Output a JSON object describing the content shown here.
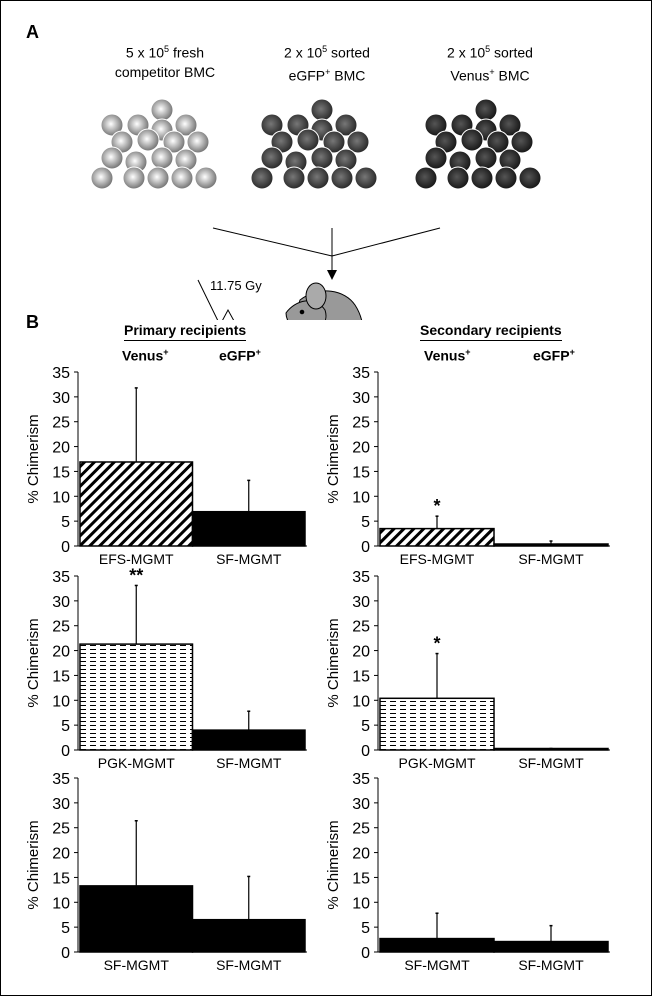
{
  "panel_a": {
    "label": "A",
    "groups": [
      {
        "line1": "5 x 10",
        "sup": "5",
        "line1_rest": " fresh",
        "line2": "competitor BMC",
        "tone": "light"
      },
      {
        "line1": "2 x 10",
        "sup": "5",
        "line1_rest": " sorted",
        "line2": "eGFP",
        "line2_sup": "+",
        "line2_rest": " BMC",
        "tone": "dark"
      },
      {
        "line1": "2 x 10",
        "sup": "5",
        "line1_rest": " sorted",
        "line2": "Venus",
        "line2_sup": "+",
        "line2_rest": " BMC",
        "tone": "darker"
      }
    ],
    "irradiation": "11.75 Gy"
  },
  "panel_b": {
    "label": "B",
    "primary_title": "Primary recipients",
    "secondary_title": "Secondary recipients",
    "col1": "Venus",
    "col1_sup": "+",
    "col2": "eGFP",
    "col2_sup": "+"
  },
  "chart_data": [
    {
      "type": "bar",
      "id": "p1",
      "ylabel": "% Chimerism",
      "ylim": [
        0,
        35
      ],
      "yticks": [
        0,
        5,
        10,
        15,
        20,
        25,
        30,
        35
      ],
      "categories": [
        "EFS-MGMT",
        "SF-MGMT"
      ],
      "values": [
        16.9,
        6.9
      ],
      "error_upper": [
        31.8,
        13.2
      ],
      "patterns": [
        "diagonal",
        "solid"
      ],
      "annotations": [
        "",
        ""
      ]
    },
    {
      "type": "bar",
      "id": "s1",
      "ylabel": "% Chimerism",
      "ylim": [
        0,
        35
      ],
      "yticks": [
        0,
        5,
        10,
        15,
        20,
        25,
        30,
        35
      ],
      "categories": [
        "EFS-MGMT",
        "SF-MGMT"
      ],
      "values": [
        3.5,
        0.4
      ],
      "error_upper": [
        6.0,
        1.0
      ],
      "patterns": [
        "diagonal",
        "solid"
      ],
      "annotations": [
        "*",
        ""
      ]
    },
    {
      "type": "bar",
      "id": "p2",
      "ylabel": "% Chimerism",
      "ylim": [
        0,
        35
      ],
      "yticks": [
        0,
        5,
        10,
        15,
        20,
        25,
        30,
        35
      ],
      "categories": [
        "PGK-MGMT",
        "SF-MGMT"
      ],
      "values": [
        21.3,
        4.0
      ],
      "error_upper": [
        33.1,
        7.8
      ],
      "patterns": [
        "dashed",
        "solid"
      ],
      "annotations": [
        "**",
        ""
      ]
    },
    {
      "type": "bar",
      "id": "s2",
      "ylabel": "% Chimerism",
      "ylim": [
        0,
        35
      ],
      "yticks": [
        0,
        5,
        10,
        15,
        20,
        25,
        30,
        35
      ],
      "categories": [
        "PGK-MGMT",
        "SF-MGMT"
      ],
      "values": [
        10.4,
        0.3
      ],
      "error_upper": [
        19.4,
        0.3
      ],
      "patterns": [
        "dashed",
        "solid"
      ],
      "annotations": [
        "*",
        ""
      ]
    },
    {
      "type": "bar",
      "id": "p3",
      "ylabel": "% Chimerism",
      "ylim": [
        0,
        35
      ],
      "yticks": [
        0,
        5,
        10,
        15,
        20,
        25,
        30,
        35
      ],
      "categories": [
        "SF-MGMT",
        "SF-MGMT"
      ],
      "values": [
        13.3,
        6.5
      ],
      "error_upper": [
        26.4,
        15.2
      ],
      "patterns": [
        "solid",
        "solid"
      ],
      "annotations": [
        "",
        ""
      ]
    },
    {
      "type": "bar",
      "id": "s3",
      "ylabel": "% Chimerism",
      "ylim": [
        0,
        35
      ],
      "yticks": [
        0,
        5,
        10,
        15,
        20,
        25,
        30,
        35
      ],
      "categories": [
        "SF-MGMT",
        "SF-MGMT"
      ],
      "values": [
        2.7,
        2.1
      ],
      "error_upper": [
        7.8,
        5.3
      ],
      "patterns": [
        "solid",
        "solid"
      ],
      "annotations": [
        "",
        ""
      ]
    }
  ]
}
